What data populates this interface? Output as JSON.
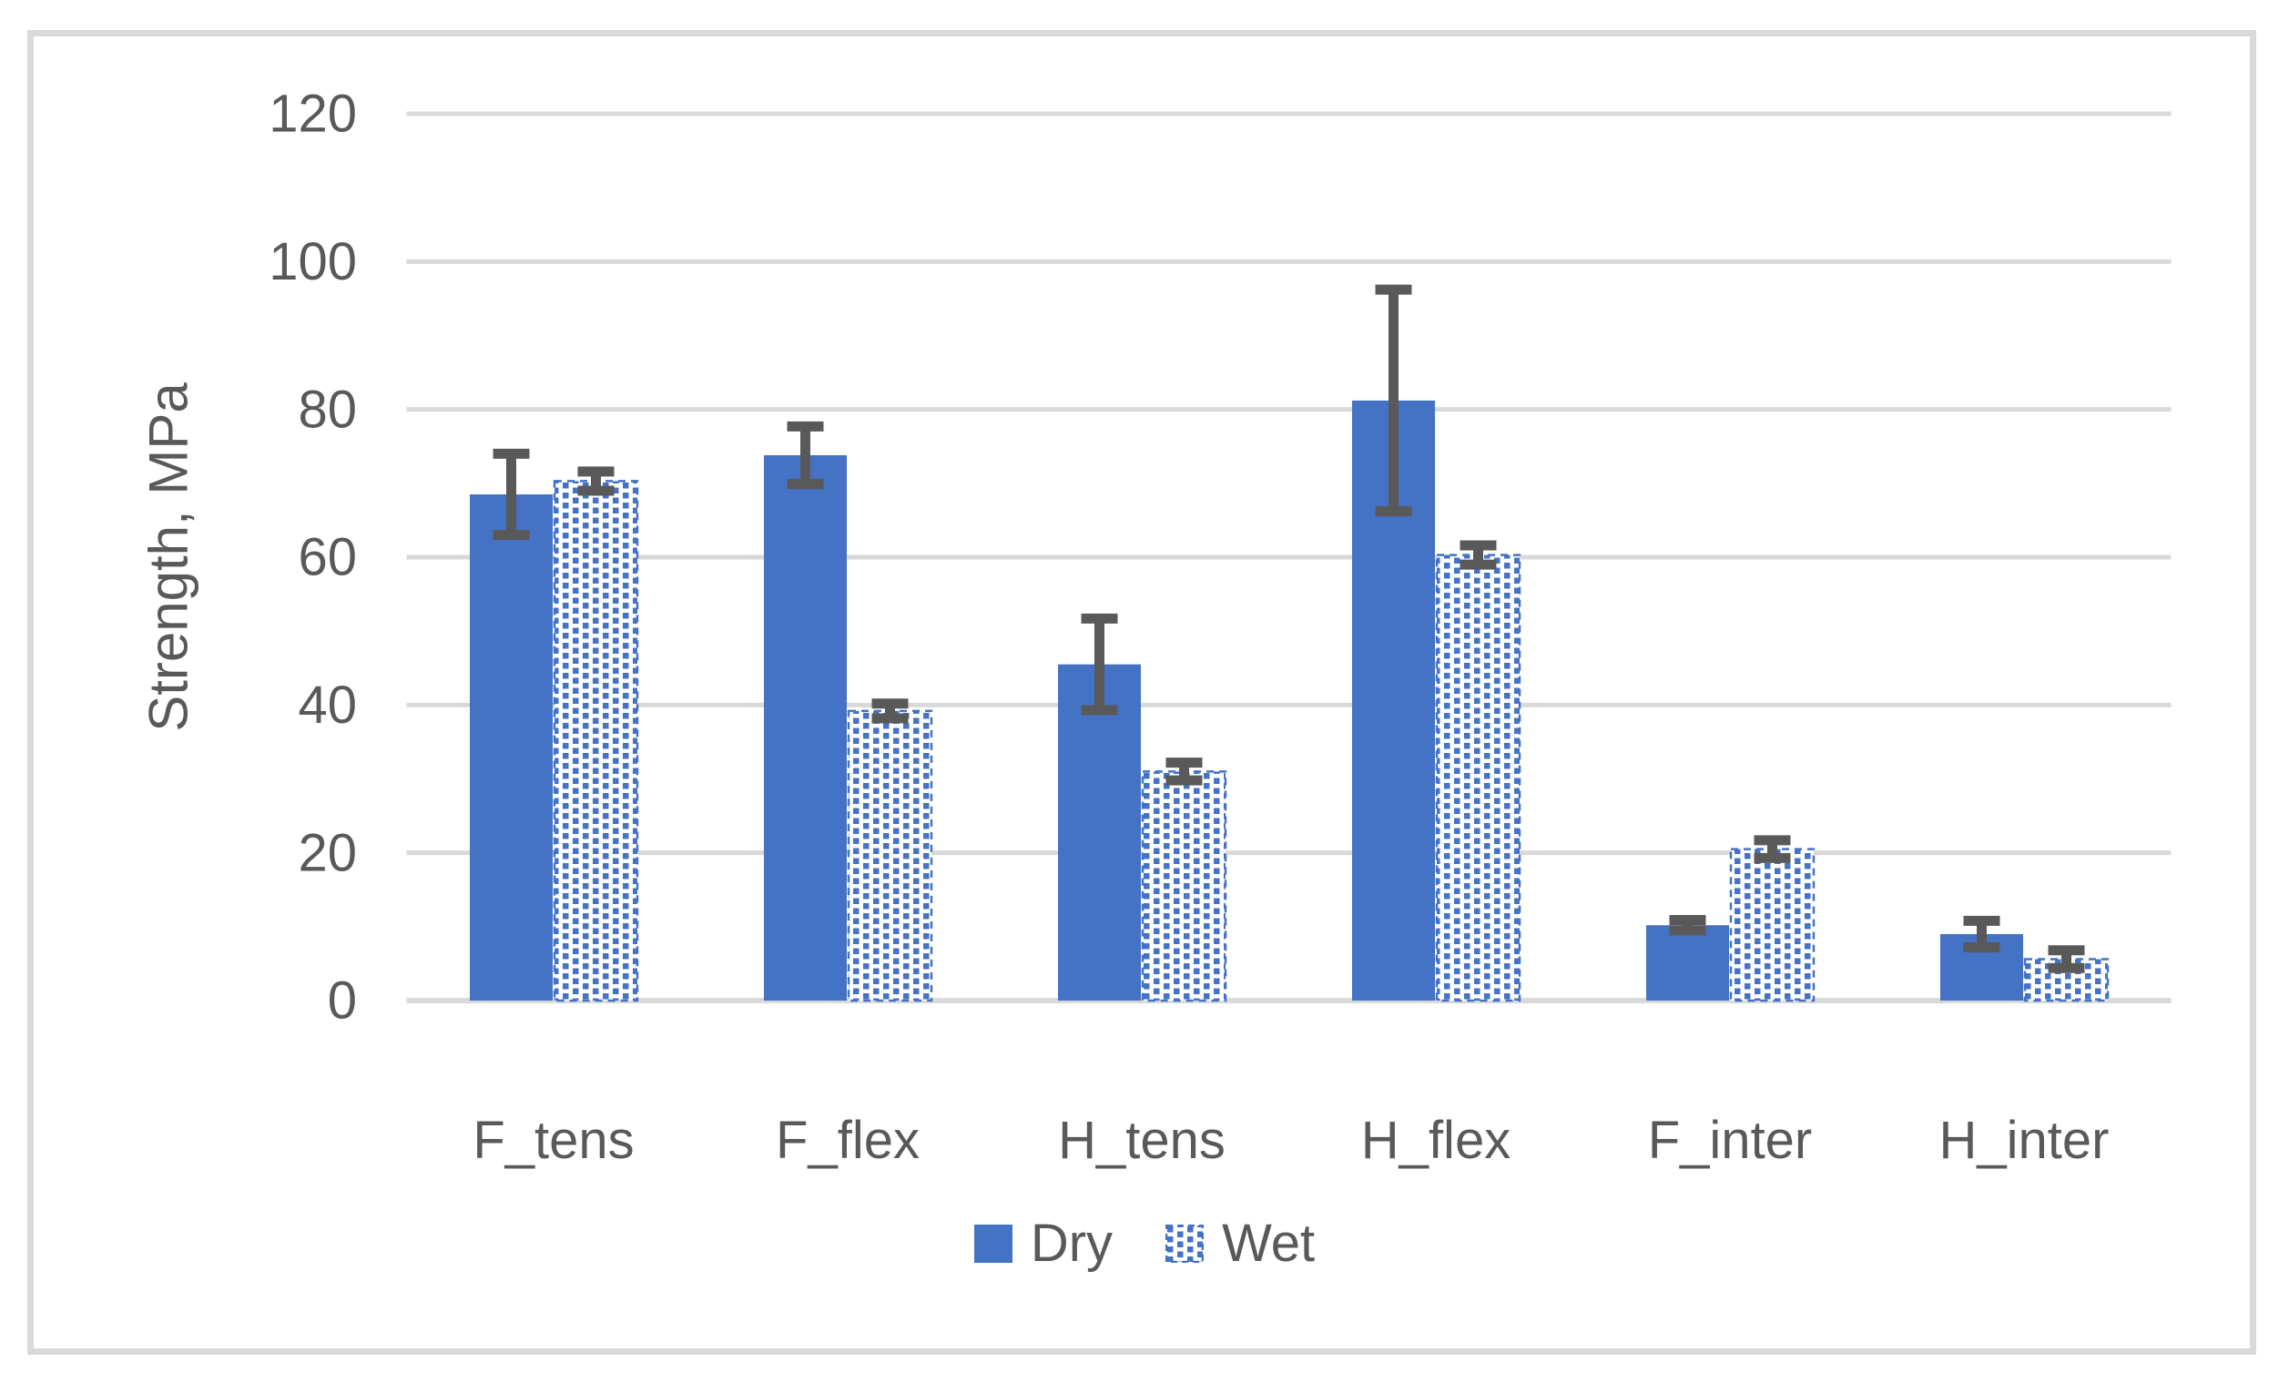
{
  "chart_data": {
    "type": "bar",
    "categories": [
      "F_tens",
      "F_flex",
      "H_tens",
      "H_flex",
      "F_inter",
      "H_inter"
    ],
    "series": [
      {
        "name": "Dry",
        "style": "solid",
        "values": [
          68.5,
          73.8,
          45.5,
          81.2,
          10.2,
          9.0
        ],
        "errors": [
          5.5,
          3.9,
          6.2,
          15.0,
          0.7,
          1.8
        ]
      },
      {
        "name": "Wet",
        "style": "dotted",
        "values": [
          70.3,
          39.2,
          31.0,
          60.3,
          20.5,
          5.6
        ],
        "errors": [
          1.3,
          1.0,
          1.2,
          1.3,
          1.2,
          1.2
        ]
      }
    ],
    "title": "",
    "xlabel": "",
    "ylabel": "Strength, MPa",
    "ylim": [
      0,
      120
    ],
    "ytick_step": 20,
    "yticks": [
      0,
      20,
      40,
      60,
      80,
      100,
      120
    ],
    "grid": true,
    "legend_position": "bottom",
    "colors": {
      "bar": "#4472c4",
      "error_bar": "#595959",
      "gridline": "#d9d9d9",
      "axis_text": "#595959",
      "frame_border": "#d9d9d9",
      "background": "#ffffff"
    }
  }
}
